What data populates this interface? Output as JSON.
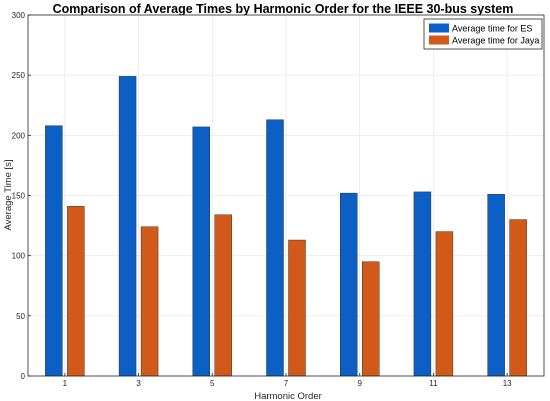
{
  "chart_data": {
    "type": "bar",
    "title": "Comparison of Average Times by Harmonic Order for the IEEE 30-bus system",
    "xlabel": "Harmonic Order",
    "ylabel": "Average Time [s]",
    "categories": [
      "1",
      "3",
      "5",
      "7",
      "9",
      "11",
      "13"
    ],
    "ylim": [
      0,
      300
    ],
    "yticks": [
      0,
      50,
      100,
      150,
      200,
      250,
      300
    ],
    "grid": true,
    "legend_position": "top-right",
    "series": [
      {
        "name": "Average time for ES",
        "color": "#0c5fc4",
        "values": [
          208,
          249,
          207,
          213,
          152,
          153,
          151
        ]
      },
      {
        "name": "Average time for Jaya",
        "color": "#d15a1a",
        "values": [
          141,
          124,
          134,
          113,
          95,
          120,
          130
        ]
      }
    ]
  }
}
